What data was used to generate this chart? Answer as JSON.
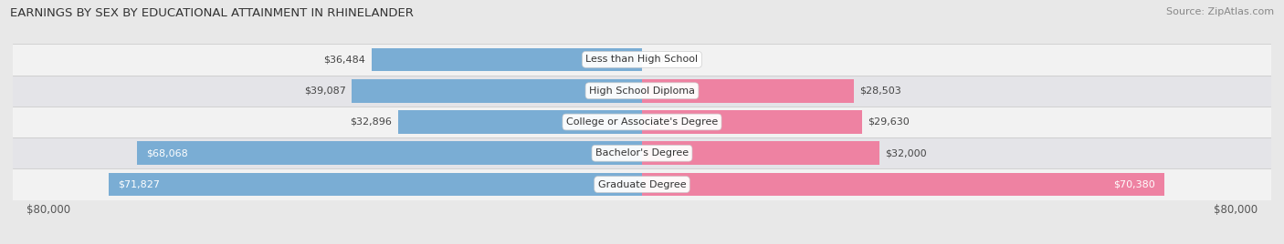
{
  "title": "EARNINGS BY SEX BY EDUCATIONAL ATTAINMENT IN RHINELANDER",
  "source": "Source: ZipAtlas.com",
  "categories": [
    "Less than High School",
    "High School Diploma",
    "College or Associate's Degree",
    "Bachelor's Degree",
    "Graduate Degree"
  ],
  "male_values": [
    36484,
    39087,
    32896,
    68068,
    71827
  ],
  "female_values": [
    0,
    28503,
    29630,
    32000,
    70380
  ],
  "max_val": 80000,
  "male_color": "#7aadd4",
  "female_color": "#ee82a2",
  "bg_color": "#e8e8e8",
  "row_colors": [
    "#f2f2f2",
    "#e4e4e8"
  ],
  "title_fontsize": 9.5,
  "source_fontsize": 8.0,
  "bar_label_fontsize": 8.0,
  "category_fontsize": 8.0,
  "axis_label_fontsize": 8.5
}
